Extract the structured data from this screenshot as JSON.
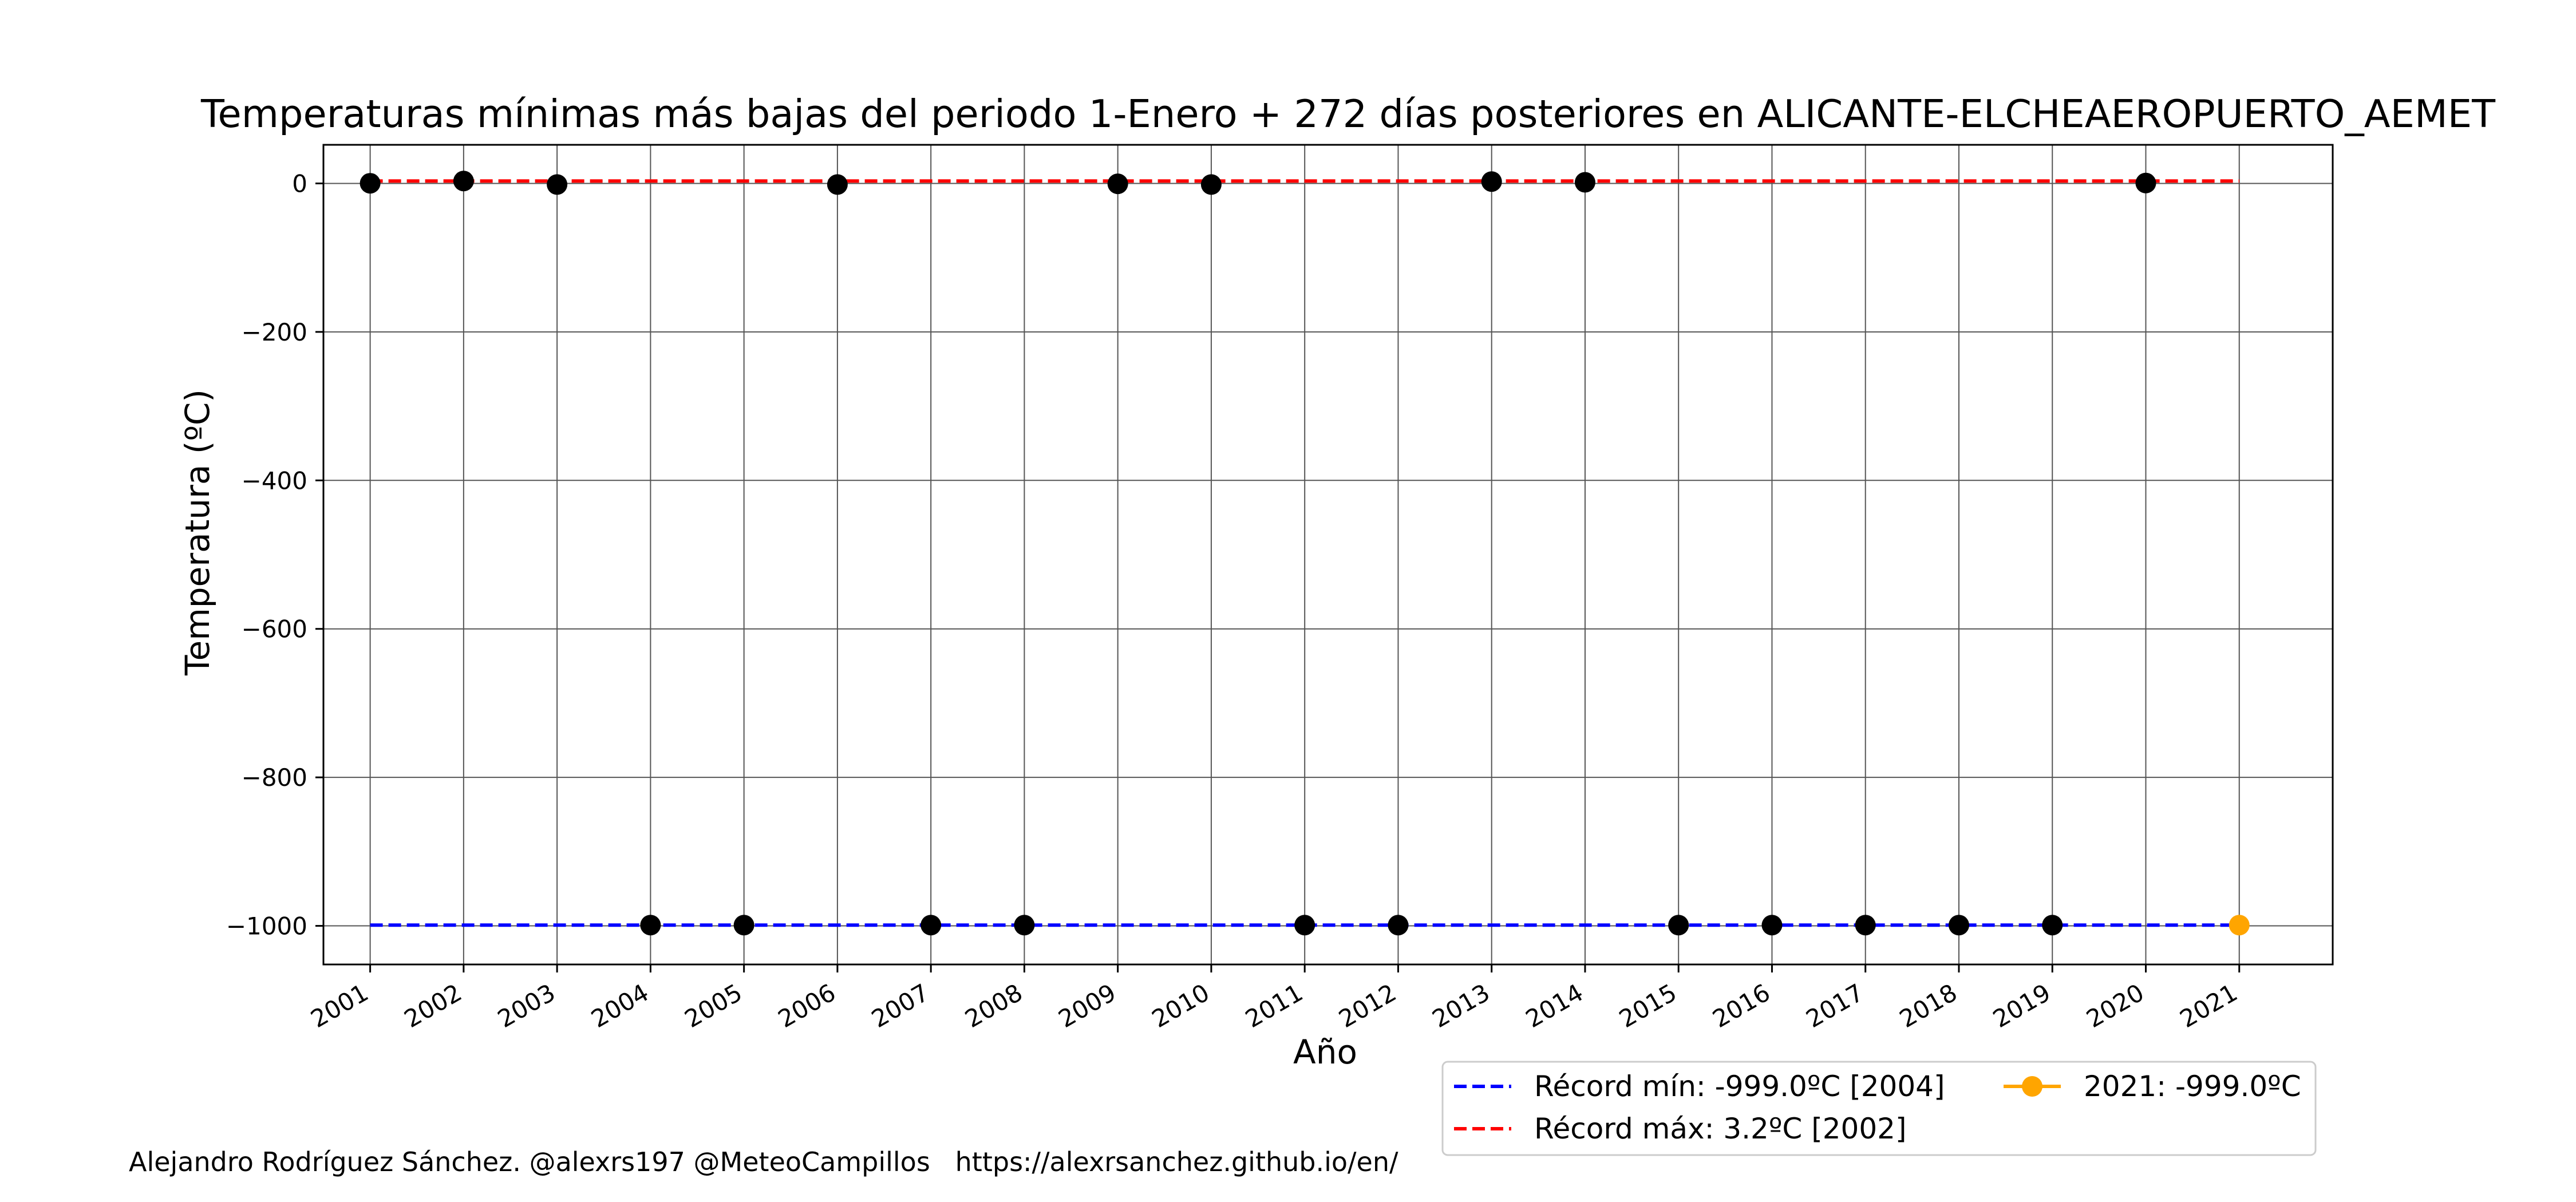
{
  "chart_data": {
    "type": "scatter",
    "title": "Temperaturas mínimas más bajas del periodo 1-Enero + 272 días posteriores en ALICANTE-ELCHEAEROPUERTO_AEMET",
    "xlabel": "Año",
    "ylabel": "Temperatura (ºC)",
    "x": [
      2001,
      2002,
      2003,
      2004,
      2005,
      2006,
      2007,
      2008,
      2009,
      2010,
      2011,
      2012,
      2013,
      2014,
      2015,
      2016,
      2017,
      2018,
      2019,
      2020,
      2021
    ],
    "x_ticks": [
      "2001",
      "2002",
      "2003",
      "2004",
      "2005",
      "2006",
      "2007",
      "2008",
      "2009",
      "2010",
      "2011",
      "2012",
      "2013",
      "2014",
      "2015",
      "2016",
      "2017",
      "2018",
      "2019",
      "2020",
      "2021"
    ],
    "y_ticks": [
      0,
      -200,
      -400,
      -600,
      -800,
      -1000
    ],
    "y_tick_labels": [
      "0",
      "−200",
      "−400",
      "−600",
      "−800",
      "−1000"
    ],
    "xlim": [
      2000.5,
      2022.0
    ],
    "ylim": [
      -1052,
      52
    ],
    "grid": true,
    "legend_position": "bottom-right, below plot",
    "series": [
      {
        "kind": "points",
        "color": "#000000",
        "points": [
          {
            "x": 2001,
            "y": 0.2
          },
          {
            "x": 2002,
            "y": 3.2
          },
          {
            "x": 2003,
            "y": -1.5
          },
          {
            "x": 2004,
            "y": -999.0
          },
          {
            "x": 2005,
            "y": -999.0
          },
          {
            "x": 2006,
            "y": -1.5
          },
          {
            "x": 2007,
            "y": -999.0
          },
          {
            "x": 2008,
            "y": -999.0
          },
          {
            "x": 2009,
            "y": -0.5
          },
          {
            "x": 2010,
            "y": -1.5
          },
          {
            "x": 2011,
            "y": -999.0
          },
          {
            "x": 2012,
            "y": -999.0
          },
          {
            "x": 2013,
            "y": 2.5
          },
          {
            "x": 2014,
            "y": 1.5
          },
          {
            "x": 2015,
            "y": -999.0
          },
          {
            "x": 2016,
            "y": -999.0
          },
          {
            "x": 2017,
            "y": -999.0
          },
          {
            "x": 2018,
            "y": -999.0
          },
          {
            "x": 2019,
            "y": -999.0
          },
          {
            "x": 2020,
            "y": 0.5
          }
        ]
      },
      {
        "kind": "current",
        "name": "2021: -999.0ºC",
        "color": "#ffa500",
        "points": [
          {
            "x": 2021,
            "y": -999.0
          }
        ]
      }
    ],
    "reference_lines": [
      {
        "name": "Récord mín: -999.0ºC [2004]",
        "y": -999.0,
        "x_from": 2001,
        "x_to": 2021,
        "color": "#0000ff",
        "style": "dashed"
      },
      {
        "name": "Récord máx: 3.2ºC [2002]",
        "y": 3.2,
        "x_from": 2001,
        "x_to": 2021,
        "color": "#ff0000",
        "style": "dashed"
      }
    ],
    "legend": [
      {
        "label": "Récord mín: -999.0ºC [2004]",
        "color": "#0000ff",
        "marker": "dashed-line"
      },
      {
        "label": "Récord máx: 3.2ºC [2002]",
        "color": "#ff0000",
        "marker": "dashed-line"
      },
      {
        "label": "2021: -999.0ºC",
        "color": "#ffa500",
        "marker": "line-dot"
      }
    ]
  },
  "footer": {
    "credit": "Alejandro Rodríguez Sánchez. @alexrs197 @MeteoCampillos   https://alexrsanchez.github.io/en/"
  }
}
